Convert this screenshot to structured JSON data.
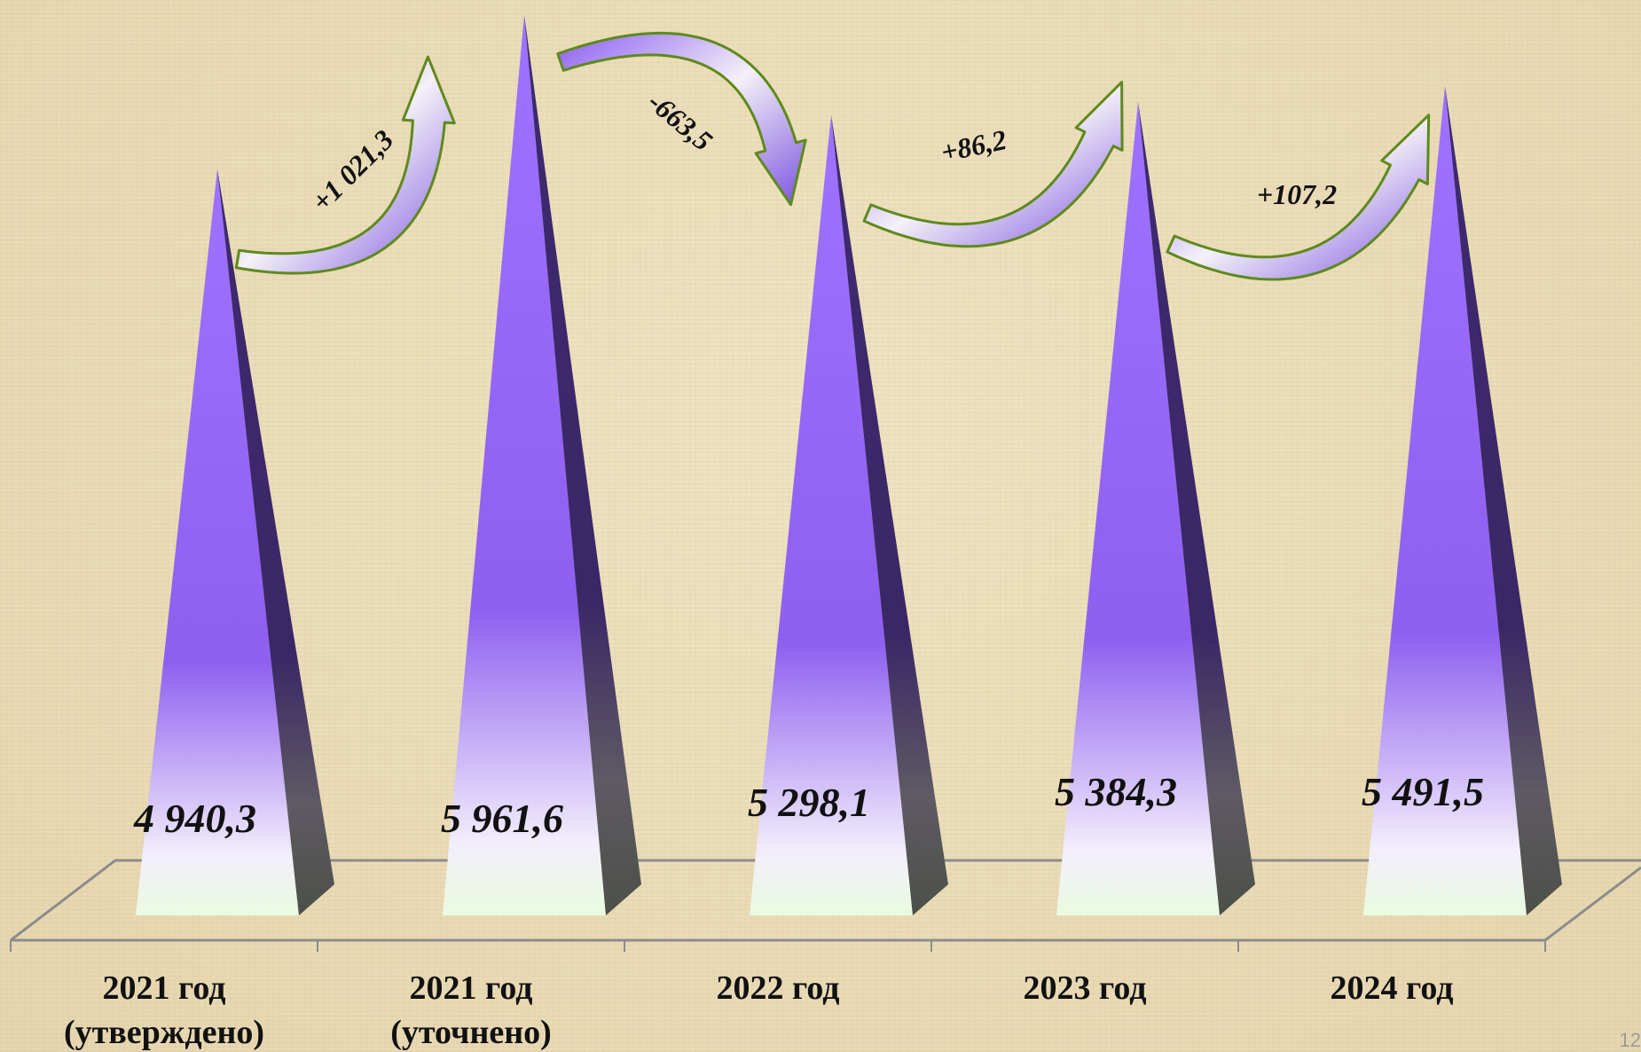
{
  "page_number": "12",
  "chart_data": {
    "type": "bar",
    "shape": "pyramid",
    "categories": [
      [
        "2021 год",
        "(утверждено)"
      ],
      [
        "2021 год",
        "(уточнено)"
      ],
      [
        "2022 год"
      ],
      [
        "2023 год"
      ],
      [
        "2024 год"
      ]
    ],
    "values": [
      4940.3,
      5961.6,
      5298.1,
      5384.3,
      5491.5
    ],
    "value_labels": [
      "4 940,3",
      "5 961,6",
      "5 298,1",
      "5 384,3",
      "5 491,5"
    ],
    "changes": [
      {
        "label": "+1 021,3",
        "from": 0,
        "to": 1,
        "direction": "up"
      },
      {
        "label": "-663,5",
        "from": 1,
        "to": 2,
        "direction": "down"
      },
      {
        "label": "+86,2",
        "from": 2,
        "to": 3,
        "direction": "up"
      },
      {
        "label": "+107,2",
        "from": 3,
        "to": 4,
        "direction": "up"
      }
    ],
    "ylim": [
      0,
      6000
    ],
    "grid": false,
    "title": "",
    "xlabel": "",
    "ylabel": "",
    "colors": {
      "pyramid_top": "#9f72ff",
      "pyramid_mid": "#8f5ff0",
      "pyramid_base": "#f0fbe6",
      "pyramid_side": "#3a2766",
      "arrow_fill": "#7b55e0",
      "arrow_stroke": "#5e8a1c",
      "floor_line": "#8c8c8c"
    }
  }
}
